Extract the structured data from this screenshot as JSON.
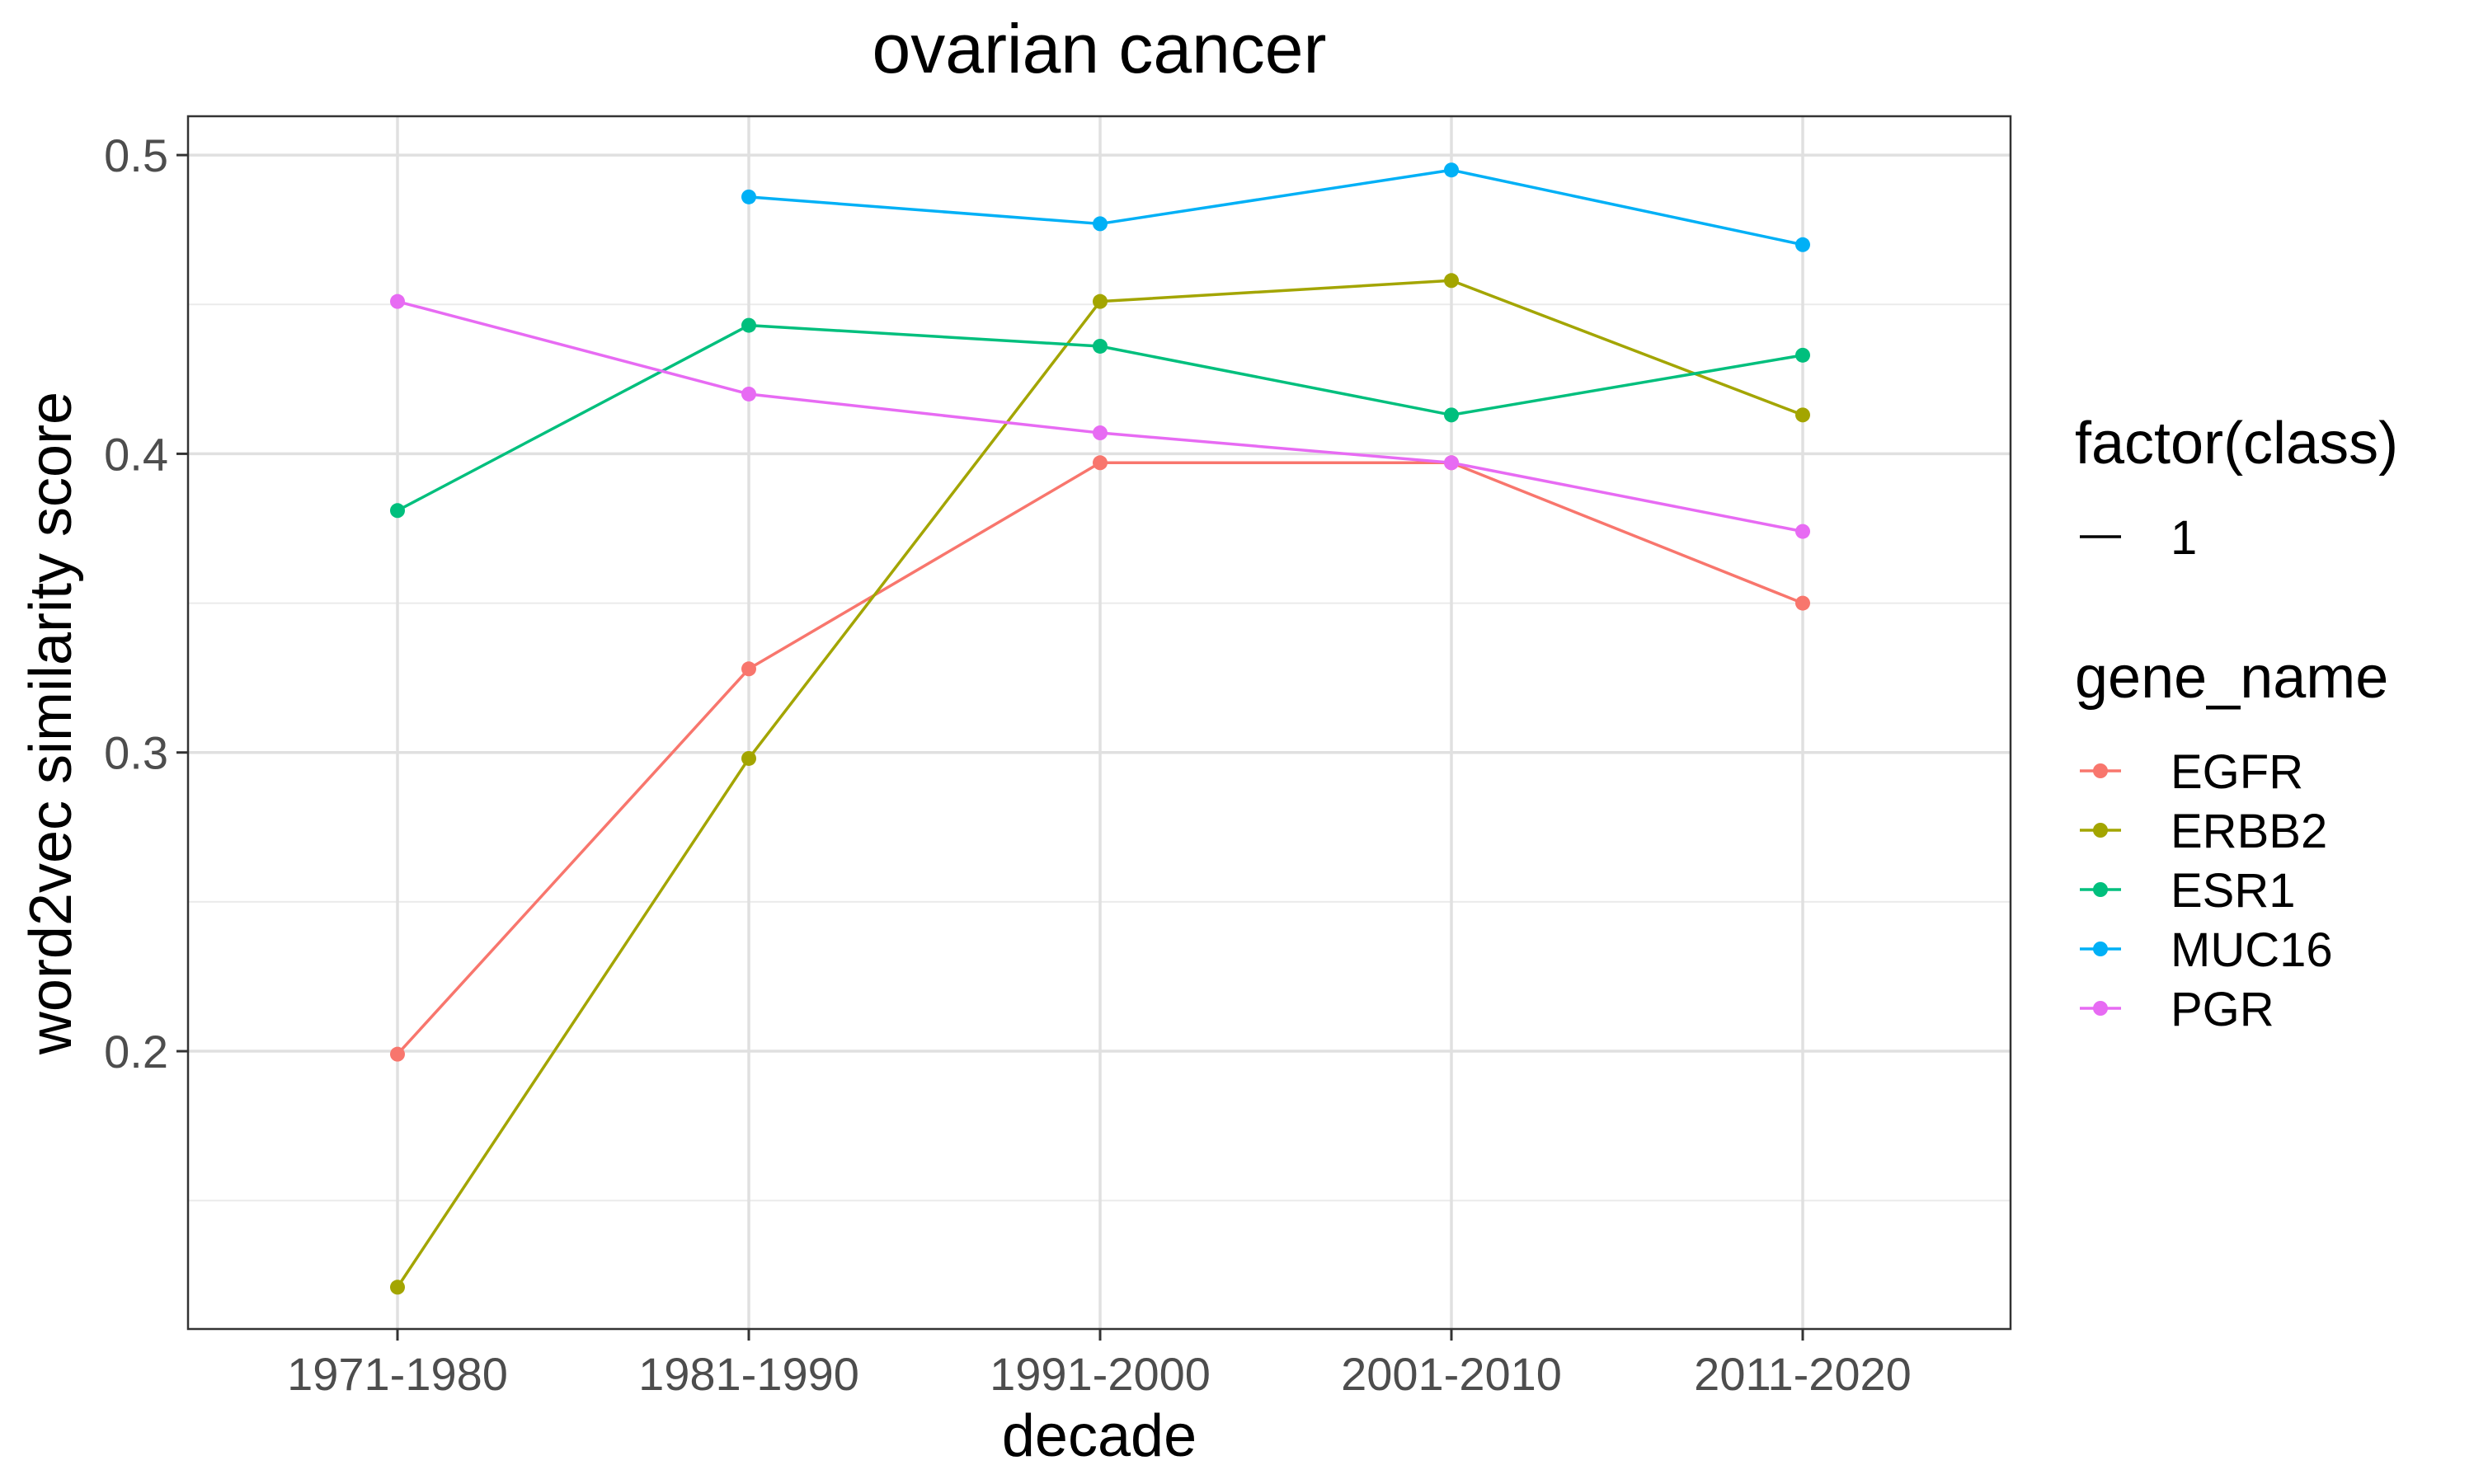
{
  "chart_data": {
    "type": "line",
    "title": "ovarian cancer",
    "xlabel": "decade",
    "ylabel": "word2vec similarity score",
    "categories": [
      "1971-1980",
      "1981-1990",
      "1991-2000",
      "2001-2010",
      "2011-2020"
    ],
    "yticks": [
      "0.2",
      "0.3",
      "0.4",
      "0.5"
    ],
    "ylim": [
      0.107,
      0.513
    ],
    "grid": true,
    "legend_position": "right",
    "legends": [
      {
        "title": "factor(class)",
        "entries": [
          "1"
        ]
      },
      {
        "title": "gene_name",
        "entries": [
          "EGFR",
          "ERBB2",
          "ESR1",
          "MUC16",
          "PGR"
        ]
      }
    ],
    "series": [
      {
        "name": "EGFR",
        "color": "#F8766D",
        "values": [
          0.199,
          0.328,
          0.397,
          0.397,
          0.35
        ]
      },
      {
        "name": "ERBB2",
        "color": "#A3A500",
        "values": [
          0.121,
          0.298,
          0.451,
          0.458,
          0.413
        ]
      },
      {
        "name": "ESR1",
        "color": "#00BF7D",
        "values": [
          0.381,
          0.443,
          0.436,
          0.413,
          0.433
        ]
      },
      {
        "name": "MUC16",
        "color": "#00B0F6",
        "values": [
          null,
          0.486,
          0.477,
          0.495,
          0.47
        ]
      },
      {
        "name": "PGR",
        "color": "#E76BF3",
        "values": [
          0.451,
          0.42,
          0.407,
          0.397,
          0.374
        ]
      }
    ]
  }
}
